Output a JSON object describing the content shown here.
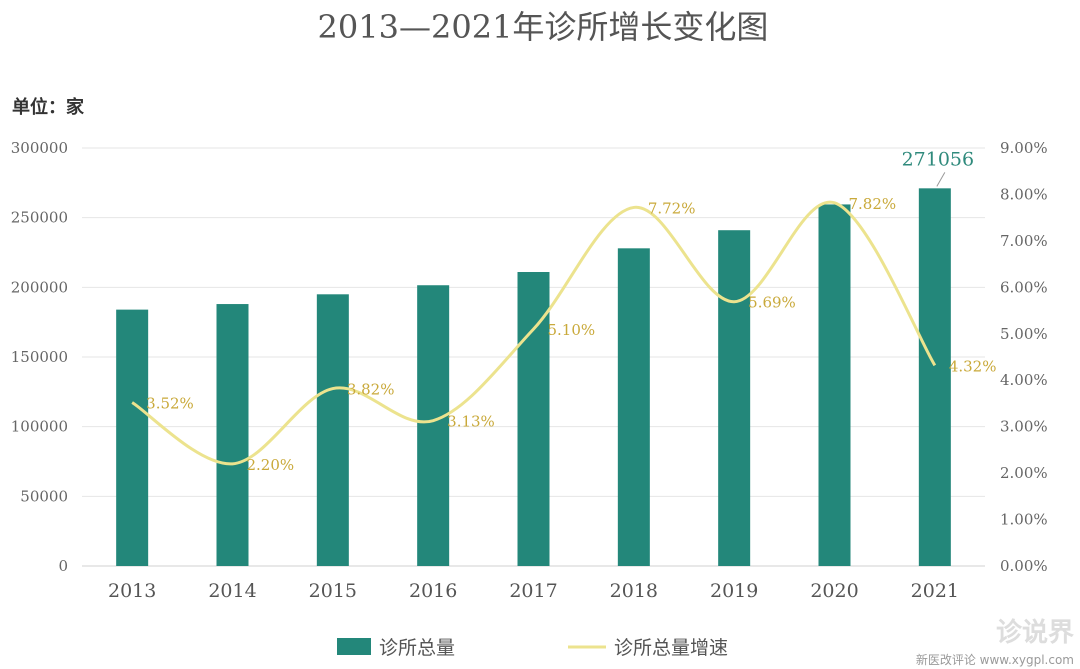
{
  "chart_data": {
    "type": "bar",
    "title": "2013—2021年诊所增长变化图",
    "unit_label": "单位：家",
    "categories": [
      "2013",
      "2014",
      "2015",
      "2016",
      "2017",
      "2018",
      "2019",
      "2020",
      "2021"
    ],
    "series": [
      {
        "name": "诊所总量",
        "type": "bar",
        "axis": "left",
        "color": "#23877a",
        "values": [
          184000,
          188000,
          195000,
          201500,
          211000,
          228000,
          241000,
          259500,
          271056
        ]
      },
      {
        "name": "诊所总量增速",
        "type": "line",
        "axis": "right",
        "color": "#ece38e",
        "values": [
          3.52,
          2.2,
          3.82,
          3.13,
          5.1,
          7.72,
          5.69,
          7.82,
          4.32
        ],
        "labels": [
          "3.52%",
          "2.20%",
          "3.82%",
          "3.13%",
          "5.10%",
          "7.72%",
          "5.69%",
          "7.82%",
          "4.32%"
        ]
      }
    ],
    "bar_data_labels": [
      {
        "category": "2021",
        "text": "271056"
      }
    ],
    "left_axis": {
      "ylim": [
        0,
        300000
      ],
      "ticks": [
        "0",
        "50000",
        "100000",
        "150000",
        "200000",
        "250000",
        "300000"
      ]
    },
    "right_axis": {
      "ylim": [
        0,
        9
      ],
      "ticks": [
        "0.00%",
        "1.00%",
        "2.00%",
        "3.00%",
        "4.00%",
        "5.00%",
        "6.00%",
        "7.00%",
        "8.00%",
        "9.00%"
      ]
    },
    "grid": true,
    "legend_position": "bottom-center"
  },
  "watermark": {
    "logo_text": "诊说界",
    "caption": "新医改评论 www.xygpl.com"
  }
}
